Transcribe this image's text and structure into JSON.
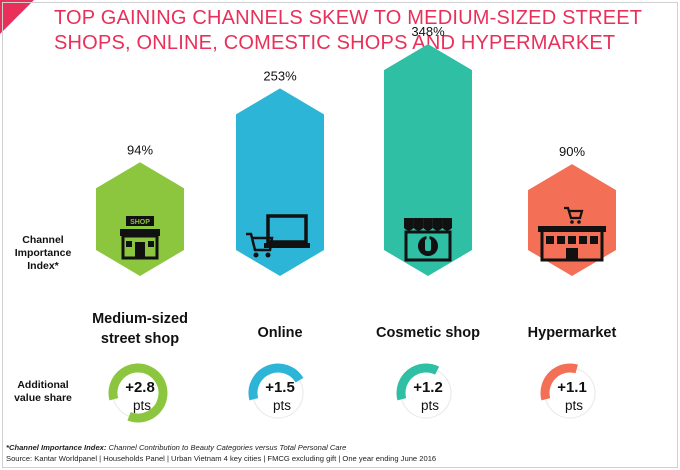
{
  "title": {
    "line1": "TOP GAINING CHANNELS SKEW TO MEDIUM-SIZED STREET",
    "line2": "SHOPS, ONLINE, COMESTIC SHOPS AND HYPERMARKET"
  },
  "row_labels": {
    "index_line1": "Channel",
    "index_line2": "Importance",
    "index_line3": "Index*",
    "share_line1": "Additional",
    "share_line2": "value share"
  },
  "colors": {
    "accent": "#e8305a",
    "medium_shop": "#8cc63f",
    "online": "#2cb5d6",
    "cosmetic": "#2ebfa5",
    "hypermarket": "#f36f55"
  },
  "chart_data": {
    "type": "bar",
    "title": "TOP GAINING CHANNELS SKEW TO MEDIUM-SIZED STREET SHOPS, ONLINE, COMESTIC SHOPS AND HYPERMARKET",
    "categories": [
      "Medium-sized street shop",
      "Online",
      "Cosmetic shop",
      "Hypermarket"
    ],
    "category_lines": [
      [
        "Medium-sized",
        "street shop"
      ],
      [
        "Online"
      ],
      [
        "Cosmetic shop"
      ],
      [
        "Hypermarket"
      ]
    ],
    "series": [
      {
        "name": "Channel Importance Index*",
        "values": [
          94,
          253,
          348,
          90
        ],
        "value_labels": [
          "94%",
          "253%",
          "348%",
          "90%"
        ]
      },
      {
        "name": "Additional value share",
        "values": [
          2.8,
          1.5,
          1.2,
          1.1
        ],
        "value_labels": [
          "+2.8",
          "+1.5",
          "+1.2",
          "+1.1"
        ],
        "unit": "pts"
      }
    ],
    "icons": [
      "shop-sign-icon",
      "laptop-cart-icon",
      "storefront-bottle-icon",
      "hypermarket-cart-icon"
    ],
    "icon_texts": [
      "SHOP",
      "",
      "",
      ""
    ],
    "colors": [
      "#8cc63f",
      "#2cb5d6",
      "#2ebfa5",
      "#f36f55"
    ],
    "xlabel": "",
    "ylabel": ""
  },
  "footnote": {
    "def_label": "*Channel Importance Index:",
    "def_text": " Channel Contribution to Beauty Categories versus Total Personal Care",
    "source": "Source: Kantar Worldpanel | Households Panel | Urban Vietnam 4 key cities | FMCG excluding gift | One year ending June 2016"
  }
}
